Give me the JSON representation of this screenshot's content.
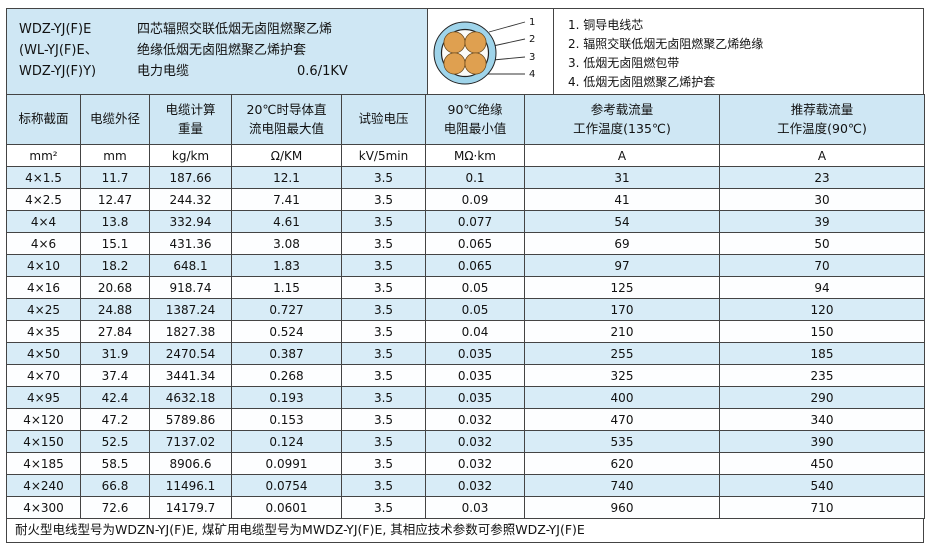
{
  "header": {
    "model_lines": [
      "WDZ-YJ(F)E",
      "(WL-YJ(F)E、",
      "WDZ-YJ(F)Y)"
    ],
    "desc_lines": [
      "四芯辐照交联低烟无卤阻燃聚乙烯",
      "绝缘低烟无卤阻燃聚乙烯护套",
      "电力电缆"
    ],
    "voltage": "0.6/1KV",
    "diagram": {
      "labels": [
        "1",
        "2",
        "3",
        "4"
      ]
    },
    "legend": [
      "1. 铜导电线芯",
      "2. 辐照交联低烟无卤阻燃聚乙烯绝缘",
      "3. 低烟无卤阻燃包带",
      "4. 低烟无卤阻燃聚乙烯护套"
    ]
  },
  "table": {
    "headers": [
      "标称截面",
      "电缆外径",
      "电缆计算\n重量",
      "20℃时导体直\n流电阻最大值",
      "试验电压",
      "90℃绝缘\n电阻最小值",
      "参考载流量\n工作温度(135℃)",
      "推荐载流量\n工作温度(90℃)"
    ],
    "units": [
      "mm²",
      "mm",
      "kg/km",
      "Ω/KM",
      "kV/5min",
      "MΩ·km",
      "A",
      "A"
    ],
    "rows": [
      [
        "4×1.5",
        "11.7",
        "187.66",
        "12.1",
        "3.5",
        "0.1",
        "31",
        "23"
      ],
      [
        "4×2.5",
        "12.47",
        "244.32",
        "7.41",
        "3.5",
        "0.09",
        "41",
        "30"
      ],
      [
        "4×4",
        "13.8",
        "332.94",
        "4.61",
        "3.5",
        "0.077",
        "54",
        "39"
      ],
      [
        "4×6",
        "15.1",
        "431.36",
        "3.08",
        "3.5",
        "0.065",
        "69",
        "50"
      ],
      [
        "4×10",
        "18.2",
        "648.1",
        "1.83",
        "3.5",
        "0.065",
        "97",
        "70"
      ],
      [
        "4×16",
        "20.68",
        "918.74",
        "1.15",
        "3.5",
        "0.05",
        "125",
        "94"
      ],
      [
        "4×25",
        "24.88",
        "1387.24",
        "0.727",
        "3.5",
        "0.05",
        "170",
        "120"
      ],
      [
        "4×35",
        "27.84",
        "1827.38",
        "0.524",
        "3.5",
        "0.04",
        "210",
        "150"
      ],
      [
        "4×50",
        "31.9",
        "2470.54",
        "0.387",
        "3.5",
        "0.035",
        "255",
        "185"
      ],
      [
        "4×70",
        "37.4",
        "3441.34",
        "0.268",
        "3.5",
        "0.035",
        "325",
        "235"
      ],
      [
        "4×95",
        "42.4",
        "4632.18",
        "0.193",
        "3.5",
        "0.035",
        "400",
        "290"
      ],
      [
        "4×120",
        "47.2",
        "5789.86",
        "0.153",
        "3.5",
        "0.032",
        "470",
        "340"
      ],
      [
        "4×150",
        "52.5",
        "7137.02",
        "0.124",
        "3.5",
        "0.032",
        "535",
        "390"
      ],
      [
        "4×185",
        "58.5",
        "8906.6",
        "0.0991",
        "3.5",
        "0.032",
        "620",
        "450"
      ],
      [
        "4×240",
        "66.8",
        "11496.1",
        "0.0754",
        "3.5",
        "0.032",
        "740",
        "540"
      ],
      [
        "4×300",
        "72.6",
        "14179.7",
        "0.0601",
        "3.5",
        "0.03",
        "960",
        "710"
      ]
    ]
  },
  "footer": {
    "note": "耐火型电线型号为WDZN-YJ(F)E, 煤矿用电缆型号为MWDZ-YJ(F)E, 其相应技术参数可参照WDZ-YJ(F)E"
  },
  "colors": {
    "header_bg": "#cfe7f4",
    "row_blue": "#d8ecf7",
    "row_white": "#fdfeff",
    "sheath_blue": "#9fd4ea",
    "conductor_orange": "#dfa050"
  }
}
